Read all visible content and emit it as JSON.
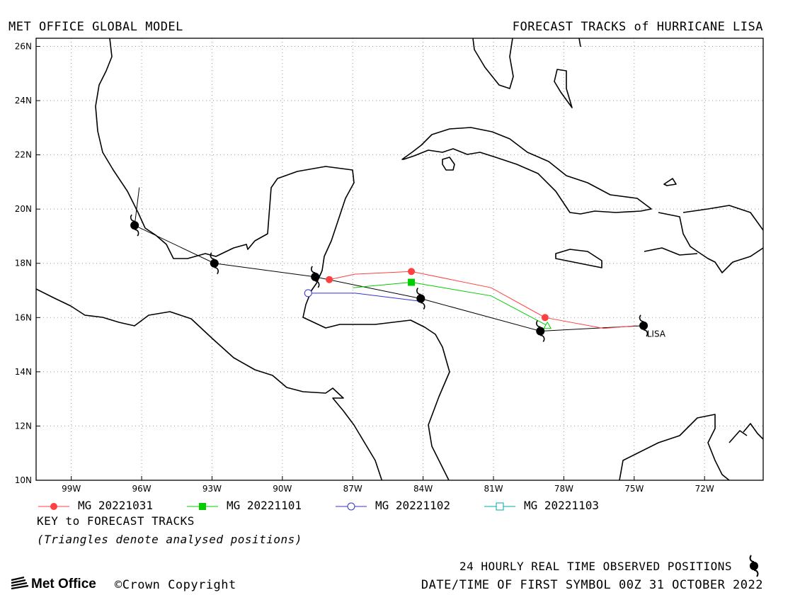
{
  "header": {
    "left_title": "MET OFFICE GLOBAL MODEL",
    "right_title": "FORECAST TRACKS of HURRICANE LISA"
  },
  "map": {
    "lon_range": [
      -100.5,
      -69.5
    ],
    "lat_range": [
      10,
      26.3
    ],
    "lat_ticks": [
      {
        "value": 26,
        "label": "26N"
      },
      {
        "value": 24,
        "label": "24N"
      },
      {
        "value": 22,
        "label": "22N"
      },
      {
        "value": 20,
        "label": "20N"
      },
      {
        "value": 18,
        "label": "18N"
      },
      {
        "value": 16,
        "label": "16N"
      },
      {
        "value": 14,
        "label": "14N"
      },
      {
        "value": 12,
        "label": "12N"
      },
      {
        "value": 10,
        "label": "10N"
      }
    ],
    "lon_ticks": [
      {
        "value": -99,
        "label": "99W"
      },
      {
        "value": -96,
        "label": "96W"
      },
      {
        "value": -93,
        "label": "93W"
      },
      {
        "value": -90,
        "label": "90W"
      },
      {
        "value": -87,
        "label": "87W"
      },
      {
        "value": -84,
        "label": "84W"
      },
      {
        "value": -81,
        "label": "81W"
      },
      {
        "value": -78,
        "label": "78W"
      },
      {
        "value": -75,
        "label": "75W"
      },
      {
        "value": -72,
        "label": "72W"
      }
    ],
    "grid": "dotted",
    "storm_label": {
      "text": "LISA",
      "lon": -74.7,
      "lat": 15.4
    },
    "observed_track": [
      [
        -74.6,
        15.7
      ],
      [
        -79.0,
        15.5
      ],
      [
        -84.1,
        16.7
      ],
      [
        -88.6,
        17.5
      ],
      [
        -92.9,
        18.0
      ],
      [
        -96.3,
        19.4
      ]
    ],
    "observed_tail": [
      [
        -96.3,
        19.4
      ],
      [
        -96.1,
        20.8
      ]
    ],
    "forecast_tracks": [
      {
        "name": "MG 20221031",
        "color": "#ff4040",
        "marker": "filled-circle",
        "points": [
          [
            -74.9,
            15.7
          ],
          [
            -76.3,
            15.6
          ],
          [
            -78.8,
            16.0
          ],
          [
            -81.1,
            17.1
          ],
          [
            -84.5,
            17.7
          ],
          [
            -86.9,
            17.6
          ],
          [
            -88.0,
            17.4
          ]
        ],
        "marker_points": [
          [
            -78.8,
            16.0
          ],
          [
            -84.5,
            17.7
          ],
          [
            -88.0,
            17.4
          ]
        ]
      },
      {
        "name": "MG 20221101",
        "color": "#00cc00",
        "marker": "filled-square",
        "points": [
          [
            -78.7,
            15.7
          ],
          [
            -81.1,
            16.8
          ],
          [
            -84.5,
            17.3
          ],
          [
            -87.0,
            17.1
          ]
        ],
        "marker_points": [
          [
            -84.5,
            17.3
          ]
        ],
        "start_marker": "open-triangle"
      },
      {
        "name": "MG 20221102",
        "color": "#3333cc",
        "marker": "open-circle",
        "points": [
          [
            -84.1,
            16.6
          ],
          [
            -86.9,
            16.9
          ],
          [
            -88.9,
            16.9
          ]
        ],
        "marker_points": [
          [
            -88.9,
            16.9
          ]
        ]
      },
      {
        "name": "MG 20221103",
        "color": "#00aaaa",
        "marker": "open-square",
        "points": [],
        "marker_points": []
      }
    ]
  },
  "legend": {
    "items": [
      "MG 20221031",
      "MG 20221101",
      "MG 20221102",
      "MG 20221103"
    ],
    "key_title": "KEY to FORECAST TRACKS",
    "key_note": "(Triangles denote analysed positions)"
  },
  "footer": {
    "observed_text": "24 HOURLY REAL TIME OBSERVED POSITIONS",
    "datetime_text": "DATE/TIME OF FIRST SYMBOL 00Z 31 OCTOBER 2022",
    "brand": "Met Office",
    "copyright": "©Crown Copyright"
  }
}
